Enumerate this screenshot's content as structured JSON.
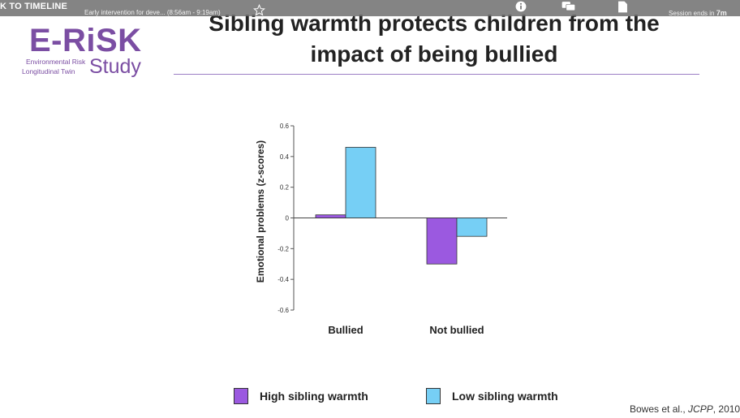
{
  "player": {
    "back_label": "K TO TIMELINE",
    "session_title": "Early intervention for deve... (8:56am - 9:19am)",
    "session_ends": "Session ends in",
    "session_remaining": "7m"
  },
  "logo": {
    "main": "E-RiSK",
    "study": "Study",
    "line1": "Environmental Risk",
    "line2": "Longitudinal Twin"
  },
  "slide": {
    "title_line1": "Sibling warmth protects children from the",
    "title_line2": "impact of being bullied",
    "citation_prefix": "Bowes et al., ",
    "citation_journal": "JCPP",
    "citation_suffix": ", 2010"
  },
  "chart_data": {
    "type": "bar",
    "categories": [
      "Bullied",
      "Not bullied"
    ],
    "series": [
      {
        "name": "High sibling warmth",
        "values": [
          0.02,
          -0.3
        ],
        "color": "#9b59e0"
      },
      {
        "name": "Low sibling warmth",
        "values": [
          0.46,
          -0.12
        ],
        "color": "#76cff5"
      }
    ],
    "ylabel": "Emotional problems (z-scores)",
    "xlabel": "",
    "ylim": [
      -0.6,
      0.6
    ],
    "yticks": [
      0.6,
      0.4,
      0.2,
      0,
      -0.2,
      -0.4,
      -0.6
    ],
    "ytick_labels": [
      "0.6",
      "0.4",
      "0.2",
      "0",
      "-0.2",
      "-0.4",
      "-0.6"
    ],
    "grid": false,
    "legend_position": "bottom"
  }
}
